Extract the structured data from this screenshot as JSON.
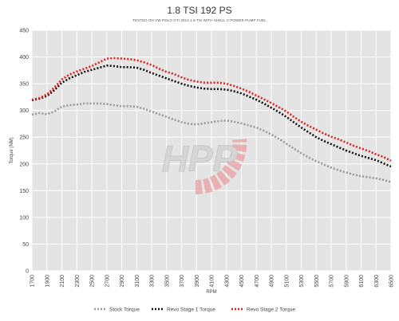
{
  "chart_data": {
    "type": "line",
    "title": "1.8 TSI 192 PS",
    "subtitle": "TESTED ON VW POLO GTI 2014 1.8 TSI WITH SHELL V-POWER PUMP FUEL",
    "xlabel": "RPM",
    "ylabel": "Torque (NM)",
    "ylim": [
      0,
      450
    ],
    "yticks": [
      0,
      50,
      100,
      150,
      200,
      250,
      300,
      350,
      400,
      450
    ],
    "xlim": [
      1700,
      6500
    ],
    "xticks": [
      1700,
      1900,
      2100,
      2300,
      2500,
      2700,
      2900,
      3100,
      3300,
      3500,
      3700,
      3900,
      4100,
      4300,
      4500,
      4700,
      4900,
      5100,
      5300,
      5500,
      5700,
      5900,
      6100,
      6300,
      6500
    ],
    "grid": true,
    "legend_position": "bottom",
    "x": [
      1700,
      1800,
      1900,
      2000,
      2100,
      2200,
      2300,
      2400,
      2500,
      2600,
      2700,
      2800,
      2900,
      3000,
      3100,
      3200,
      3300,
      3400,
      3500,
      3600,
      3700,
      3800,
      3900,
      4000,
      4100,
      4200,
      4300,
      4400,
      4500,
      4600,
      4700,
      4800,
      4900,
      5000,
      5100,
      5200,
      5300,
      5400,
      5500,
      5600,
      5700,
      5800,
      5900,
      6000,
      6100,
      6200,
      6300,
      6400,
      6500
    ],
    "series": [
      {
        "name": "Stock Torque",
        "color": "#999999",
        "values": [
          292,
          295,
          293,
          298,
          307,
          310,
          311,
          313,
          313,
          313,
          312,
          310,
          308,
          308,
          307,
          303,
          298,
          293,
          288,
          283,
          278,
          275,
          274,
          276,
          278,
          280,
          281,
          279,
          276,
          272,
          268,
          262,
          255,
          247,
          238,
          229,
          220,
          212,
          205,
          199,
          193,
          188,
          184,
          180,
          177,
          175,
          173,
          170,
          166
        ]
      },
      {
        "name": "Revo Stage 1 Torque",
        "color": "#111111",
        "values": [
          319,
          322,
          327,
          338,
          352,
          360,
          366,
          372,
          376,
          380,
          384,
          383,
          381,
          381,
          380,
          376,
          370,
          365,
          360,
          355,
          350,
          346,
          343,
          341,
          340,
          340,
          339,
          336,
          332,
          326,
          320,
          313,
          305,
          297,
          288,
          278,
          268,
          259,
          250,
          243,
          237,
          231,
          225,
          220,
          215,
          211,
          207,
          201,
          195
        ]
      },
      {
        "name": "Revo Stage 2 Torque",
        "color": "#e02020",
        "values": [
          320,
          323,
          330,
          343,
          358,
          367,
          373,
          378,
          383,
          390,
          397,
          398,
          397,
          396,
          394,
          390,
          385,
          378,
          372,
          368,
          362,
          357,
          354,
          352,
          352,
          352,
          350,
          346,
          341,
          335,
          328,
          321,
          314,
          306,
          298,
          288,
          279,
          271,
          264,
          257,
          251,
          246,
          240,
          234,
          229,
          224,
          218,
          213,
          206
        ]
      }
    ]
  },
  "watermark": {
    "text": "HPP",
    "colors": [
      "#d8d8d8",
      "#e03030"
    ]
  }
}
